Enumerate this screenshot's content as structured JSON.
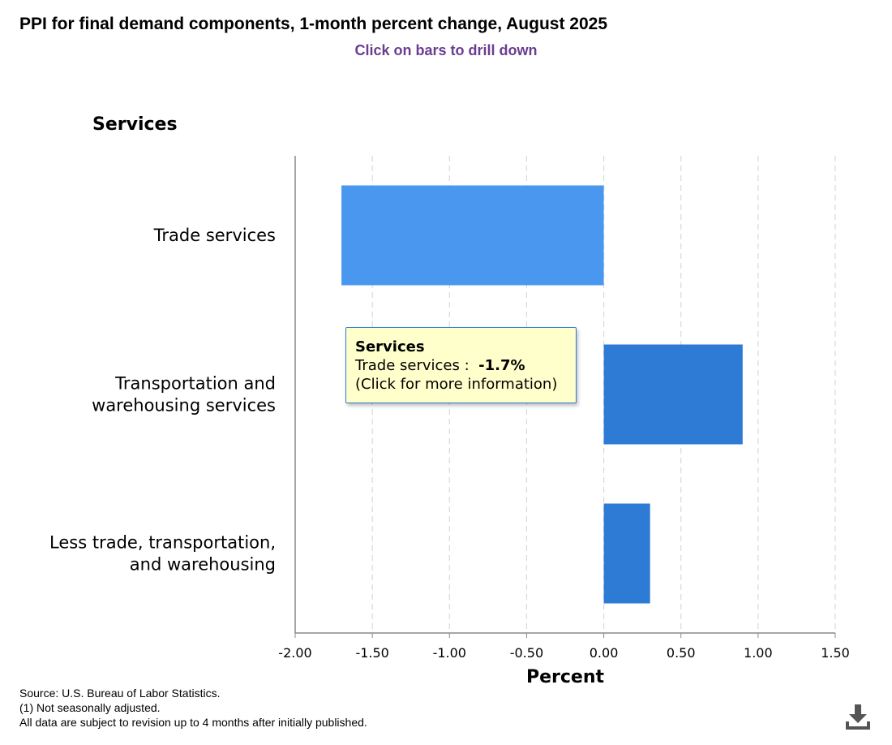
{
  "header": {
    "title": "PPI for final demand components, 1-month percent change, August 2025",
    "subtitle": "Click on bars to drill down"
  },
  "chart_data": {
    "type": "bar",
    "orientation": "horizontal",
    "title": "Services",
    "categories": [
      [
        "Trade services"
      ],
      [
        "Transportation and",
        "warehousing services"
      ],
      [
        "Less trade, transportation,",
        "and warehousing"
      ]
    ],
    "values": [
      -1.7,
      0.9,
      0.3
    ],
    "xlabel": "Percent",
    "xlim": [
      -2.0,
      1.5
    ],
    "xticks": [
      "-2.00",
      "-1.50",
      "-1.00",
      "-0.50",
      "0.00",
      "0.50",
      "1.00",
      "1.50"
    ],
    "grid": true,
    "bar_colors": [
      "#4a97f0",
      "#2e7bd6",
      "#2e7bd6"
    ]
  },
  "tooltip": {
    "title": "Services",
    "label": "Trade services :",
    "value": "-1.7%",
    "note": "(Click for more information)"
  },
  "footer": {
    "source": "Source: U.S. Bureau of Labor Statistics.",
    "note1": "(1) Not seasonally adjusted.",
    "note2": "All data are subject to revision up to 4 months after initially published."
  },
  "icons": {
    "download": "download-icon"
  }
}
